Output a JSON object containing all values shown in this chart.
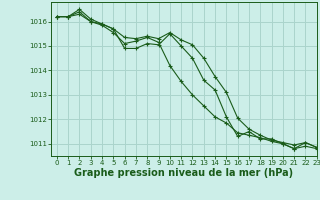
{
  "background_color": "#cceee8",
  "plot_bg_color": "#cceee8",
  "grid_color": "#aad4cc",
  "line_color": "#1a5c1a",
  "xlabel": "Graphe pression niveau de la mer (hPa)",
  "xlabel_fontsize": 7,
  "xlim": [
    -0.5,
    23
  ],
  "ylim": [
    1010.5,
    1016.8
  ],
  "yticks": [
    1011,
    1012,
    1013,
    1014,
    1015,
    1016
  ],
  "xticks": [
    0,
    1,
    2,
    3,
    4,
    5,
    6,
    7,
    8,
    9,
    10,
    11,
    12,
    13,
    14,
    15,
    16,
    17,
    18,
    19,
    20,
    21,
    22,
    23
  ],
  "series": [
    [
      1016.2,
      1016.2,
      1016.5,
      1016.1,
      1015.9,
      1015.7,
      1014.9,
      1014.9,
      1015.1,
      1015.05,
      1015.5,
      1015.0,
      1014.5,
      1013.6,
      1013.2,
      1012.1,
      1011.3,
      1011.5,
      1011.2,
      1011.2,
      1011.0,
      1010.8,
      1010.9,
      1010.8
    ],
    [
      1016.2,
      1016.2,
      1016.3,
      1016.0,
      1015.9,
      1015.7,
      1015.35,
      1015.3,
      1015.4,
      1015.3,
      1015.55,
      1015.25,
      1015.05,
      1014.5,
      1013.75,
      1013.1,
      1012.05,
      1011.6,
      1011.35,
      1011.15,
      1011.05,
      1010.95,
      1011.05,
      1010.85
    ],
    [
      1016.2,
      1016.2,
      1016.4,
      1016.0,
      1015.85,
      1015.55,
      1015.1,
      1015.2,
      1015.35,
      1015.15,
      1014.2,
      1013.55,
      1013.0,
      1012.55,
      1012.1,
      1011.85,
      1011.45,
      1011.35,
      1011.25,
      1011.1,
      1011.0,
      1010.8,
      1011.05,
      1010.85
    ]
  ]
}
